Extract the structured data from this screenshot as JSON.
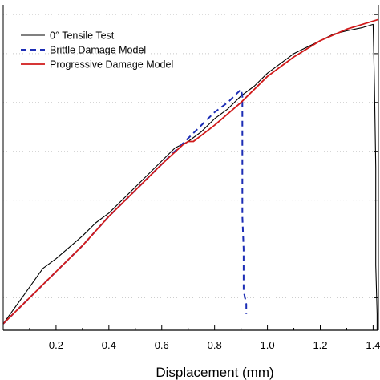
{
  "chart_data": {
    "type": "line",
    "xlabel": "Displacement (mm)",
    "ylabel": "",
    "xlim": [
      0.0,
      1.42
    ],
    "x_ticks": [
      "0.2",
      "0.4",
      "0.6",
      "0.8",
      "1.0",
      "1.2",
      "1.4"
    ],
    "legend_position": "top-left",
    "series": [
      {
        "name": "0° Tensile Test",
        "color": "#000000",
        "style": "solid",
        "points": [
          [
            0.0,
            0.02
          ],
          [
            0.08,
            0.11
          ],
          [
            0.15,
            0.19
          ],
          [
            0.2,
            0.22
          ],
          [
            0.3,
            0.29
          ],
          [
            0.35,
            0.33
          ],
          [
            0.4,
            0.36
          ],
          [
            0.5,
            0.44
          ],
          [
            0.6,
            0.52
          ],
          [
            0.65,
            0.56
          ],
          [
            0.7,
            0.58
          ],
          [
            0.75,
            0.61
          ],
          [
            0.8,
            0.65
          ],
          [
            0.85,
            0.68
          ],
          [
            0.9,
            0.72
          ],
          [
            0.95,
            0.75
          ],
          [
            1.0,
            0.79
          ],
          [
            1.05,
            0.82
          ],
          [
            1.1,
            0.85
          ],
          [
            1.15,
            0.87
          ],
          [
            1.2,
            0.89
          ],
          [
            1.25,
            0.91
          ],
          [
            1.3,
            0.92
          ],
          [
            1.33,
            0.925
          ],
          [
            1.36,
            0.93
          ],
          [
            1.38,
            0.935
          ],
          [
            1.4,
            0.94
          ],
          [
            1.405,
            0.75
          ],
          [
            1.41,
            0.5
          ],
          [
            1.41,
            0.2
          ],
          [
            1.415,
            0.05
          ],
          [
            1.415,
            0.0
          ]
        ]
      },
      {
        "name": "Brittle Damage Model",
        "color": "#1c2db5",
        "style": "dashed",
        "points": [
          [
            0.0,
            0.02
          ],
          [
            0.1,
            0.1
          ],
          [
            0.2,
            0.18
          ],
          [
            0.3,
            0.26
          ],
          [
            0.4,
            0.35
          ],
          [
            0.5,
            0.43
          ],
          [
            0.6,
            0.51
          ],
          [
            0.7,
            0.59
          ],
          [
            0.8,
            0.67
          ],
          [
            0.85,
            0.7
          ],
          [
            0.9,
            0.74
          ],
          [
            0.905,
            0.72
          ],
          [
            0.905,
            0.6
          ],
          [
            0.905,
            0.45
          ],
          [
            0.905,
            0.35
          ],
          [
            0.91,
            0.25
          ],
          [
            0.91,
            0.12
          ],
          [
            0.915,
            0.1
          ],
          [
            0.92,
            0.08
          ],
          [
            0.92,
            0.05
          ]
        ]
      },
      {
        "name": "Progressive Damage Model",
        "color": "#d11a1a",
        "style": "solid",
        "points": [
          [
            0.0,
            0.02
          ],
          [
            0.1,
            0.1
          ],
          [
            0.2,
            0.18
          ],
          [
            0.3,
            0.26
          ],
          [
            0.4,
            0.35
          ],
          [
            0.5,
            0.43
          ],
          [
            0.6,
            0.51
          ],
          [
            0.68,
            0.57
          ],
          [
            0.7,
            0.58
          ],
          [
            0.72,
            0.58
          ],
          [
            0.8,
            0.63
          ],
          [
            0.9,
            0.7
          ],
          [
            1.0,
            0.78
          ],
          [
            1.1,
            0.84
          ],
          [
            1.2,
            0.89
          ],
          [
            1.3,
            0.925
          ],
          [
            1.4,
            0.95
          ],
          [
            1.42,
            0.955
          ]
        ]
      }
    ]
  }
}
